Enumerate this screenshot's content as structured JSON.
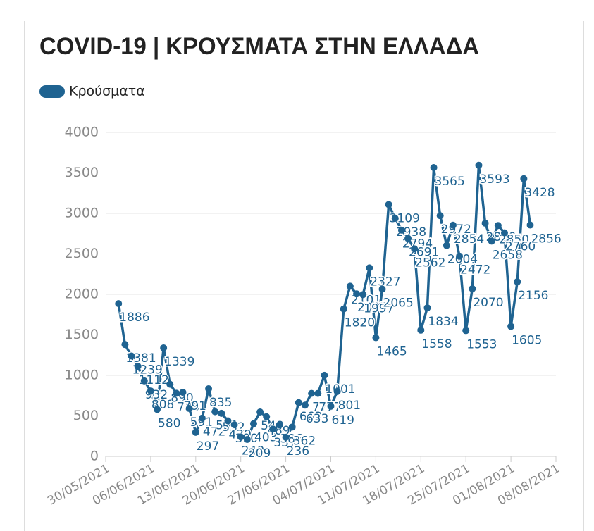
{
  "chart_data": {
    "type": "line",
    "title": "COVID-19 | ΚΡΟΥΣΜΑΤΑ ΣΤΗΝ ΕΛΛΑΔΑ",
    "x": [
      "2021-06-01",
      "2021-06-02",
      "2021-06-03",
      "2021-06-04",
      "2021-06-05",
      "2021-06-06",
      "2021-06-07",
      "2021-06-08",
      "2021-06-09",
      "2021-06-10",
      "2021-06-11",
      "2021-06-12",
      "2021-06-13",
      "2021-06-14",
      "2021-06-15",
      "2021-06-16",
      "2021-06-17",
      "2021-06-18",
      "2021-06-19",
      "2021-06-20",
      "2021-06-21",
      "2021-06-22",
      "2021-06-23",
      "2021-06-24",
      "2021-06-25",
      "2021-06-26",
      "2021-06-27",
      "2021-06-28",
      "2021-06-29",
      "2021-06-30",
      "2021-07-01",
      "2021-07-02",
      "2021-07-03",
      "2021-07-04",
      "2021-07-05",
      "2021-07-06",
      "2021-07-07",
      "2021-07-08",
      "2021-07-09",
      "2021-07-10",
      "2021-07-11",
      "2021-07-12",
      "2021-07-13",
      "2021-07-14",
      "2021-07-15",
      "2021-07-16",
      "2021-07-17",
      "2021-07-18",
      "2021-07-19",
      "2021-07-20",
      "2021-07-21",
      "2021-07-22",
      "2021-07-23",
      "2021-07-24",
      "2021-07-25",
      "2021-07-26",
      "2021-07-27",
      "2021-07-28",
      "2021-07-29",
      "2021-07-30",
      "2021-07-31",
      "2021-08-01",
      "2021-08-02",
      "2021-08-03",
      "2021-08-04"
    ],
    "series": [
      {
        "name": "Κρούσματα",
        "color": "#1f6391",
        "values": [
          1886,
          1381,
          1239,
          1112,
          932,
          808,
          580,
          1339,
          890,
          779,
          791,
          591,
          297,
          472,
          835,
          551,
          532,
          439,
          390,
          240,
          209,
          403,
          548,
          489,
          337,
          386,
          236,
          362,
          663,
          633,
          777,
          777,
          1001,
          619,
          801,
          1820,
          2101,
          2007,
          1997,
          2327,
          1465,
          2065,
          3109,
          2938,
          2794,
          2691,
          2562,
          1558,
          1834,
          3565,
          2972,
          2604,
          2854,
          2472,
          1553,
          2070,
          3593,
          2879,
          2658,
          2850,
          2760,
          1605,
          2156,
          3428,
          2856
        ]
      }
    ],
    "xlim": [
      "2021-05-30",
      "2021-08-08"
    ],
    "xticks": [
      {
        "value": "2021-05-30",
        "label": "30/05/2021"
      },
      {
        "value": "2021-06-06",
        "label": "06/06/2021"
      },
      {
        "value": "2021-06-13",
        "label": "13/06/2021"
      },
      {
        "value": "2021-06-20",
        "label": "20/06/2021"
      },
      {
        "value": "2021-06-27",
        "label": "27/06/2021"
      },
      {
        "value": "2021-07-04",
        "label": "04/07/2021"
      },
      {
        "value": "2021-07-11",
        "label": "11/07/2021"
      },
      {
        "value": "2021-07-18",
        "label": "18/07/2021"
      },
      {
        "value": "2021-07-25",
        "label": "25/07/2021"
      },
      {
        "value": "2021-08-01",
        "label": "01/08/2021"
      },
      {
        "value": "2021-08-08",
        "label": "08/08/2021"
      }
    ],
    "ylim": [
      0,
      4000
    ],
    "yticks": [
      0,
      500,
      1000,
      1500,
      2000,
      2500,
      3000,
      3500,
      4000
    ],
    "grid": true,
    "legend": "top-left"
  }
}
